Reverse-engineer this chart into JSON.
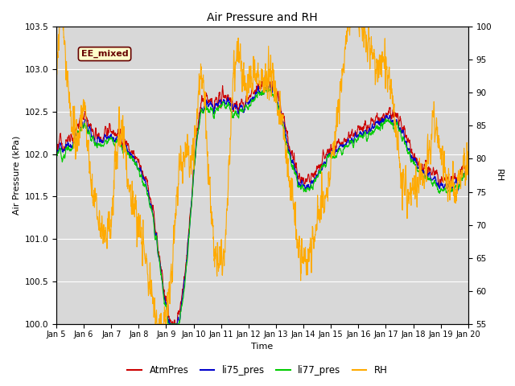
{
  "title": "Air Pressure and RH",
  "xlabel": "Time",
  "ylabel_left": "Air Pressure (kPa)",
  "ylabel_right": "RH",
  "ylim_left": [
    100.0,
    103.5
  ],
  "ylim_right": [
    55,
    100
  ],
  "yticks_left": [
    100.0,
    100.5,
    101.0,
    101.5,
    102.0,
    102.5,
    103.0,
    103.5
  ],
  "yticks_right": [
    55,
    60,
    65,
    70,
    75,
    80,
    85,
    90,
    95,
    100
  ],
  "xtick_labels": [
    "Jan 5",
    "Jan 6",
    "Jan 7",
    "Jan 8",
    "Jan 9",
    "Jan 10",
    "Jan 11",
    "Jan 12",
    "Jan 13",
    "Jan 14",
    "Jan 15",
    "Jan 16",
    "Jan 17",
    "Jan 18",
    "Jan 19",
    "Jan 20"
  ],
  "colors": {
    "AtmPres": "#cc0000",
    "li75_pres": "#0000cc",
    "li77_pres": "#00cc00",
    "RH": "#ffaa00"
  },
  "bg_color": "#e8e8e8",
  "plot_bg": "#d8d8d8",
  "annotation_text": "EE_mixed",
  "annotation_color": "#660000",
  "annotation_bg": "#ffffcc",
  "legend_labels": [
    "AtmPres",
    "li75_pres",
    "li77_pres",
    "RH"
  ],
  "figsize": [
    6.4,
    4.8
  ],
  "dpi": 100
}
